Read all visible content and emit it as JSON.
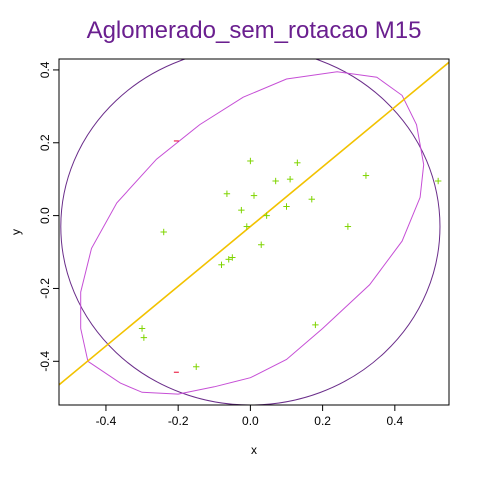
{
  "chart_data": {
    "type": "scatter",
    "title": "Aglomerado_sem_rotacao M15",
    "xlabel": "x",
    "ylabel": "y",
    "xlim": [
      -0.53,
      0.55
    ],
    "ylim": [
      -0.52,
      0.43
    ],
    "x_ticks": [
      -0.4,
      -0.2,
      0.0,
      0.2,
      0.4
    ],
    "x_tick_labels": [
      "-0.4",
      "-0.2",
      "0.0",
      "0.2",
      "0.4"
    ],
    "y_ticks": [
      -0.4,
      -0.2,
      0.0,
      0.2,
      0.4
    ],
    "y_tick_labels": [
      "-0.4",
      "-0.2",
      "0.0",
      "0.2",
      "0.4"
    ],
    "grid": false,
    "colors": {
      "title": "#6a1f8f",
      "points": "#7fd400",
      "red_marks": "#e8002a",
      "fit_line": "#f2c200",
      "ellipse": "#c64fd6",
      "circle": "#6a2d8a",
      "axes": "#000000"
    },
    "points": [
      {
        "x": 0.0,
        "y": 0.15
      },
      {
        "x": 0.13,
        "y": 0.145
      },
      {
        "x": 0.32,
        "y": 0.11
      },
      {
        "x": 0.52,
        "y": 0.095
      },
      {
        "x": 0.07,
        "y": 0.095
      },
      {
        "x": 0.11,
        "y": 0.1
      },
      {
        "x": -0.065,
        "y": 0.06
      },
      {
        "x": 0.01,
        "y": 0.055
      },
      {
        "x": 0.17,
        "y": 0.045
      },
      {
        "x": -0.025,
        "y": 0.015
      },
      {
        "x": 0.1,
        "y": 0.025
      },
      {
        "x": 0.045,
        "y": 0.0
      },
      {
        "x": -0.01,
        "y": -0.03
      },
      {
        "x": 0.27,
        "y": -0.03
      },
      {
        "x": -0.24,
        "y": -0.045
      },
      {
        "x": 0.03,
        "y": -0.08
      },
      {
        "x": -0.08,
        "y": -0.135
      },
      {
        "x": -0.06,
        "y": -0.12
      },
      {
        "x": -0.05,
        "y": -0.115
      },
      {
        "x": 0.18,
        "y": -0.3
      },
      {
        "x": -0.3,
        "y": -0.31
      },
      {
        "x": -0.295,
        "y": -0.335
      },
      {
        "x": -0.15,
        "y": -0.415
      }
    ],
    "red_marks": [
      {
        "x": -0.205,
        "y": 0.205
      },
      {
        "x": -0.205,
        "y": -0.43
      }
    ],
    "fit_line": {
      "slope": 0.82,
      "intercept": -0.03
    },
    "circle": {
      "cx": 0.0,
      "cy": -0.03,
      "rx": 0.525,
      "ry": 0.49
    },
    "ellipse_polygon": [
      [
        -0.45,
        -0.4
      ],
      [
        -0.36,
        -0.46
      ],
      [
        -0.3,
        -0.485
      ],
      [
        -0.2,
        -0.49
      ],
      [
        -0.1,
        -0.47
      ],
      [
        0.0,
        -0.445
      ],
      [
        0.1,
        -0.395
      ],
      [
        0.2,
        -0.31
      ],
      [
        0.33,
        -0.19
      ],
      [
        0.42,
        -0.07
      ],
      [
        0.47,
        0.05
      ],
      [
        0.48,
        0.14
      ],
      [
        0.46,
        0.25
      ],
      [
        0.42,
        0.33
      ],
      [
        0.35,
        0.38
      ],
      [
        0.24,
        0.395
      ],
      [
        0.1,
        0.375
      ],
      [
        -0.02,
        0.325
      ],
      [
        -0.14,
        0.25
      ],
      [
        -0.26,
        0.155
      ],
      [
        -0.37,
        0.035
      ],
      [
        -0.44,
        -0.09
      ],
      [
        -0.47,
        -0.21
      ],
      [
        -0.47,
        -0.31
      ],
      [
        -0.45,
        -0.4
      ]
    ]
  }
}
